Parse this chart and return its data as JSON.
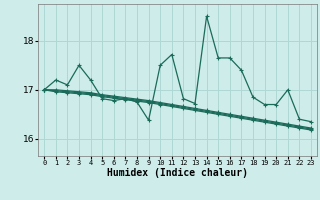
{
  "xlabel": "Humidex (Indice chaleur)",
  "xlim": [
    -0.5,
    23.5
  ],
  "ylim": [
    15.65,
    18.75
  ],
  "yticks": [
    16,
    17,
    18
  ],
  "xticks": [
    0,
    1,
    2,
    3,
    4,
    5,
    6,
    7,
    8,
    9,
    10,
    11,
    12,
    13,
    14,
    15,
    16,
    17,
    18,
    19,
    20,
    21,
    22,
    23
  ],
  "bg_color": "#ceecea",
  "grid_color": "#afd8d4",
  "line_color": "#1a6b5a",
  "series_volatile": [
    17.0,
    17.2,
    17.1,
    17.5,
    17.2,
    16.82,
    16.78,
    16.82,
    16.75,
    16.38,
    17.5,
    17.72,
    16.82,
    16.72,
    18.5,
    17.65,
    17.65,
    17.4,
    16.85,
    16.7,
    16.7,
    17.0,
    16.4,
    16.35
  ],
  "trend_lines": [
    [
      17.0,
      17.0,
      16.98,
      16.96,
      16.94,
      16.9,
      16.87,
      16.84,
      16.81,
      16.78,
      16.74,
      16.7,
      16.66,
      16.62,
      16.58,
      16.54,
      16.5,
      16.46,
      16.42,
      16.38,
      16.34,
      16.3,
      16.26,
      16.22
    ],
    [
      17.0,
      16.98,
      16.96,
      16.94,
      16.92,
      16.88,
      16.85,
      16.82,
      16.79,
      16.76,
      16.72,
      16.68,
      16.64,
      16.6,
      16.56,
      16.52,
      16.48,
      16.44,
      16.4,
      16.36,
      16.32,
      16.28,
      16.24,
      16.2
    ],
    [
      17.0,
      16.96,
      16.94,
      16.92,
      16.9,
      16.86,
      16.83,
      16.8,
      16.77,
      16.74,
      16.7,
      16.66,
      16.62,
      16.58,
      16.54,
      16.5,
      16.46,
      16.42,
      16.38,
      16.34,
      16.3,
      16.26,
      16.22,
      16.18
    ]
  ]
}
